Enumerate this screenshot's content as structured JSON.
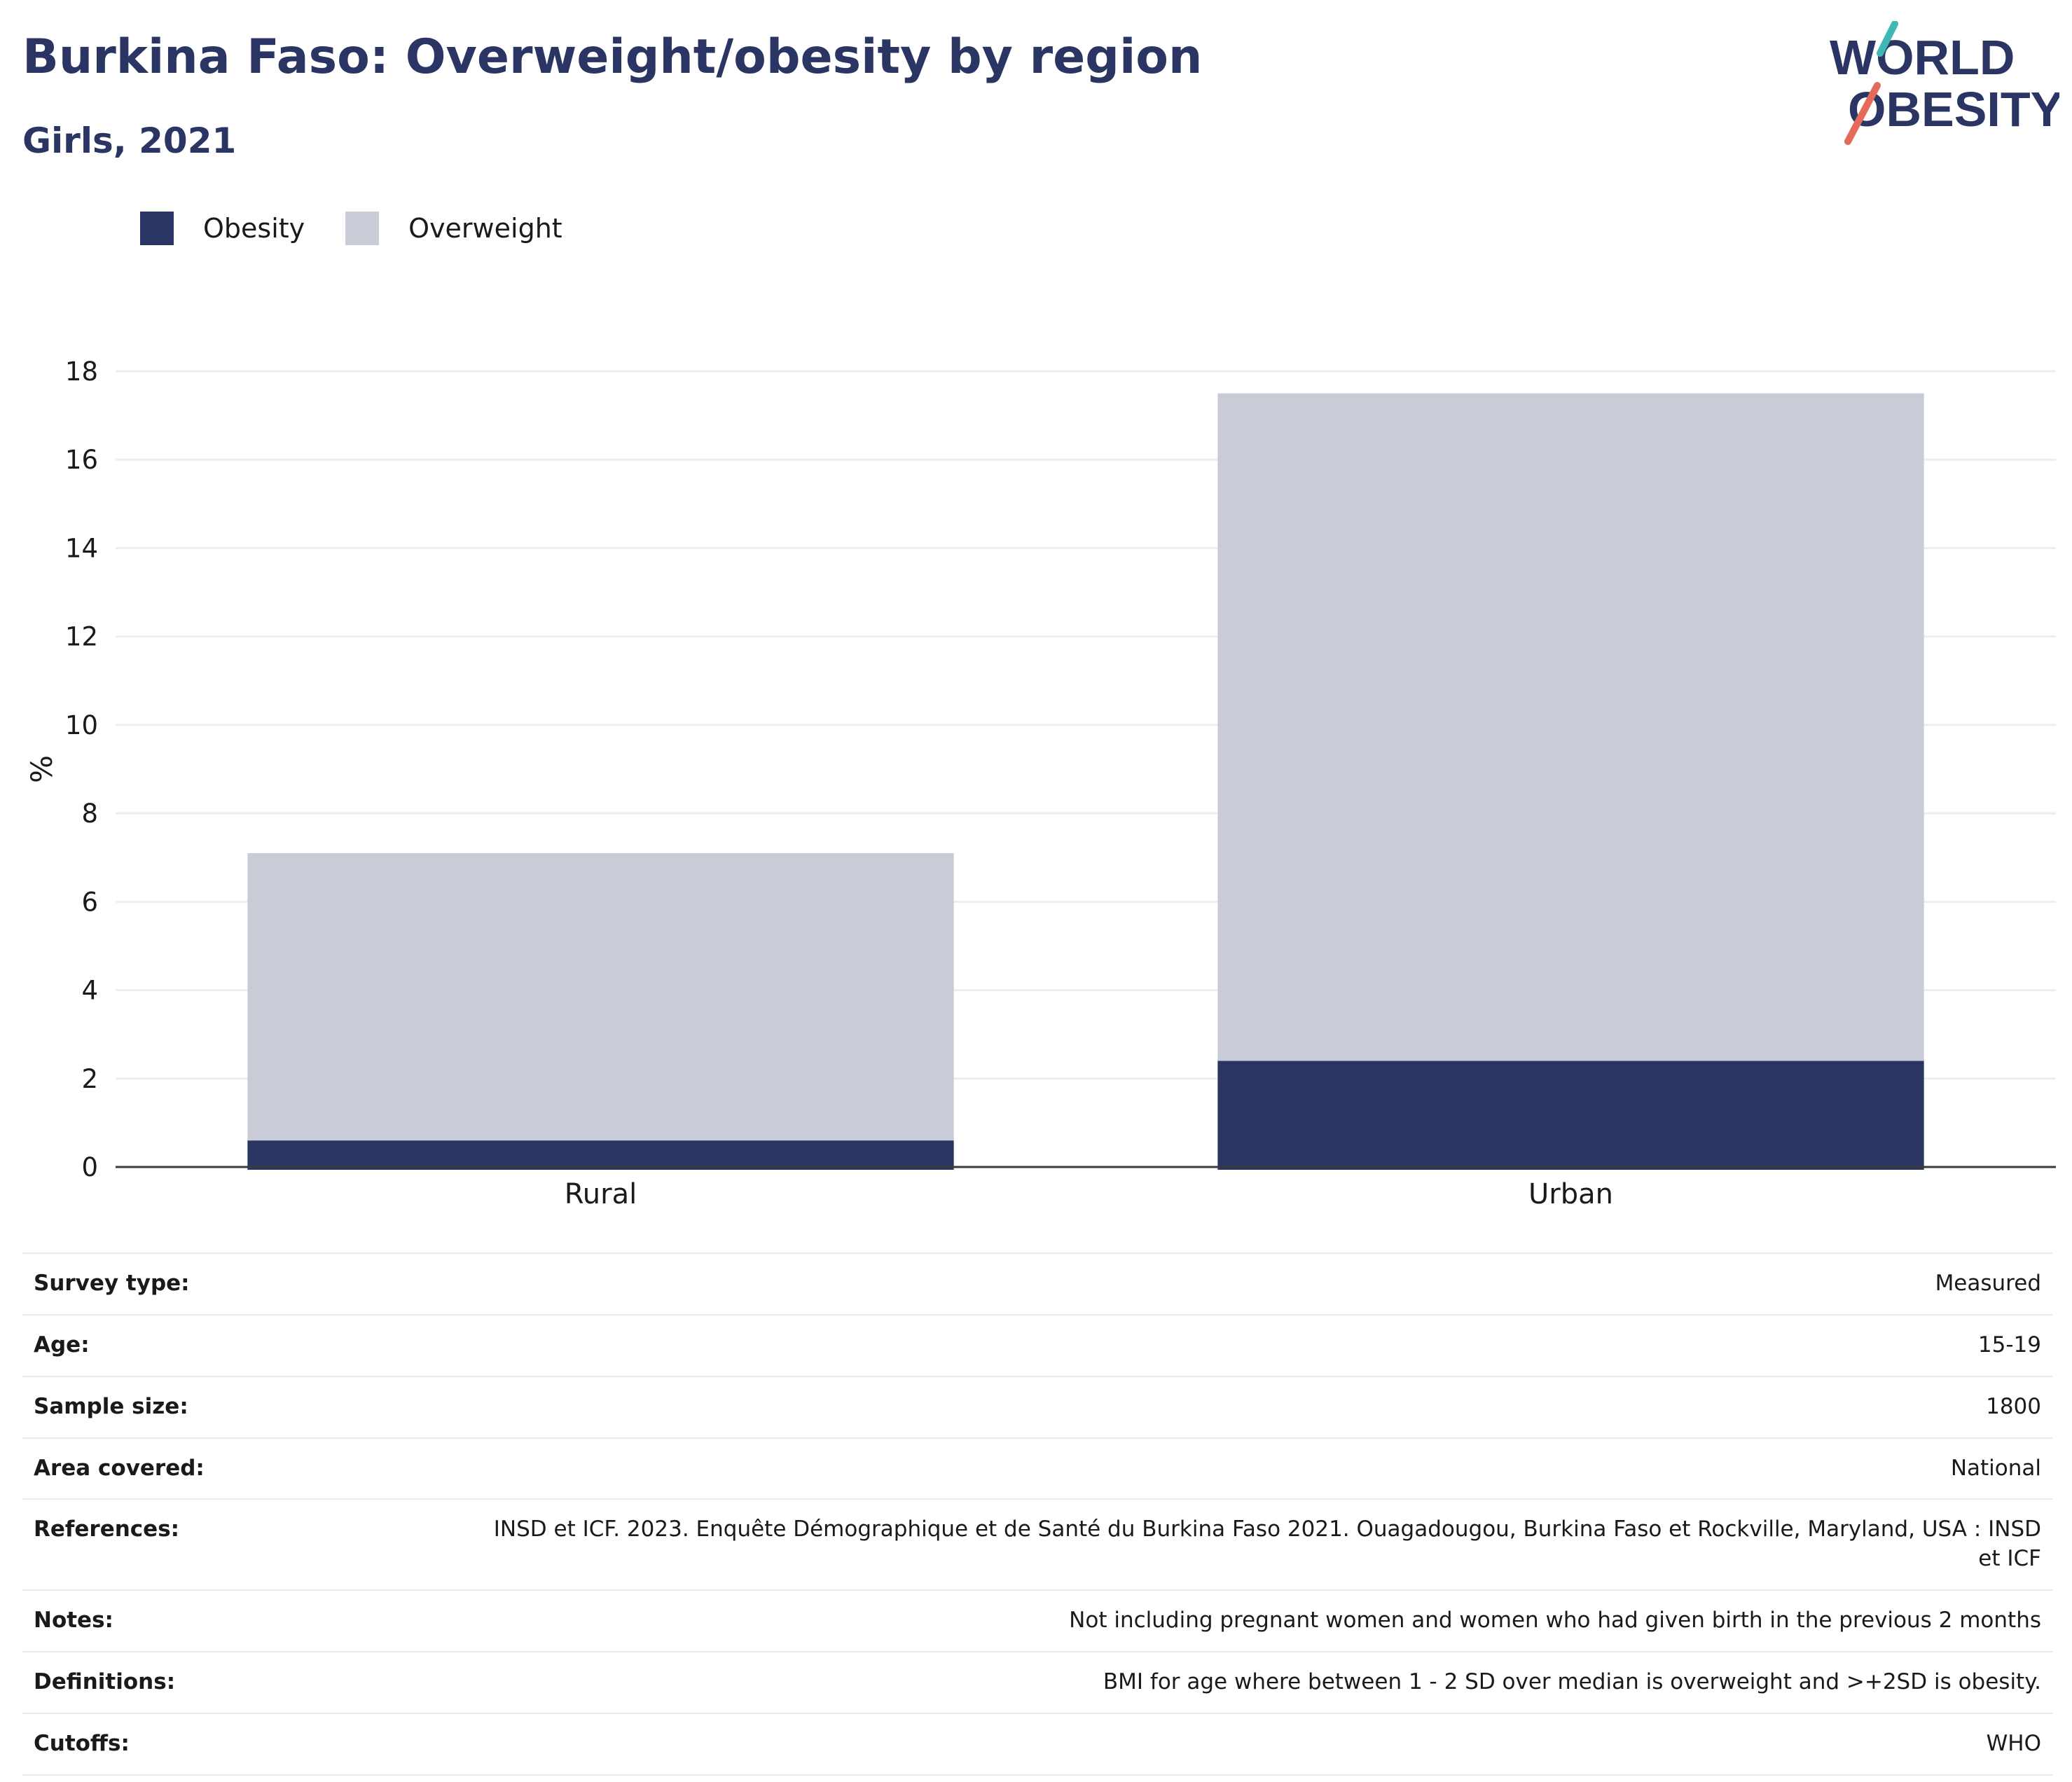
{
  "header": {
    "title": "Burkina Faso: Overweight/obesity by region",
    "subtitle": "Girls, 2021"
  },
  "logo": {
    "line1": "WORLD",
    "line2": "OBESITY",
    "colors": {
      "text": "#2a3563",
      "slash_teal": "#3fb8b5",
      "slash_coral": "#e46a5a"
    }
  },
  "legend": [
    {
      "label": "Obesity",
      "color": "#2a3563"
    },
    {
      "label": "Overweight",
      "color": "#c9cbd7"
    }
  ],
  "chart_data": {
    "type": "bar",
    "stacked": true,
    "categories": [
      "Rural",
      "Urban"
    ],
    "series": [
      {
        "name": "Obesity",
        "color": "#2a3563",
        "values": [
          0.6,
          2.4
        ]
      },
      {
        "name": "Overweight",
        "color": "#c9cbd7",
        "values": [
          6.5,
          15.1
        ]
      }
    ],
    "ylabel": "%",
    "xlabel": "",
    "ylim": [
      0,
      18
    ],
    "yticks": [
      0,
      2,
      4,
      6,
      8,
      10,
      12,
      14,
      16,
      18
    ],
    "grid": true,
    "legend_position": "top-left"
  },
  "info_table": [
    {
      "label": "Survey type:",
      "value": "Measured"
    },
    {
      "label": "Age:",
      "value": "15-19"
    },
    {
      "label": "Sample size:",
      "value": "1800"
    },
    {
      "label": "Area covered:",
      "value": "National"
    },
    {
      "label": "References:",
      "value": "INSD et ICF. 2023. Enquête Démographique et de Santé du Burkina Faso 2021. Ouagadougou, Burkina Faso et Rockville, Maryland, USA : INSD et ICF"
    },
    {
      "label": "Notes:",
      "value": "Not including pregnant women and women who had given birth in the previous 2 months"
    },
    {
      "label": "Definitions:",
      "value": "BMI for age where between 1 - 2 SD over median is overweight and >+2SD is obesity."
    },
    {
      "label": "Cutoffs:",
      "value": "WHO"
    }
  ]
}
